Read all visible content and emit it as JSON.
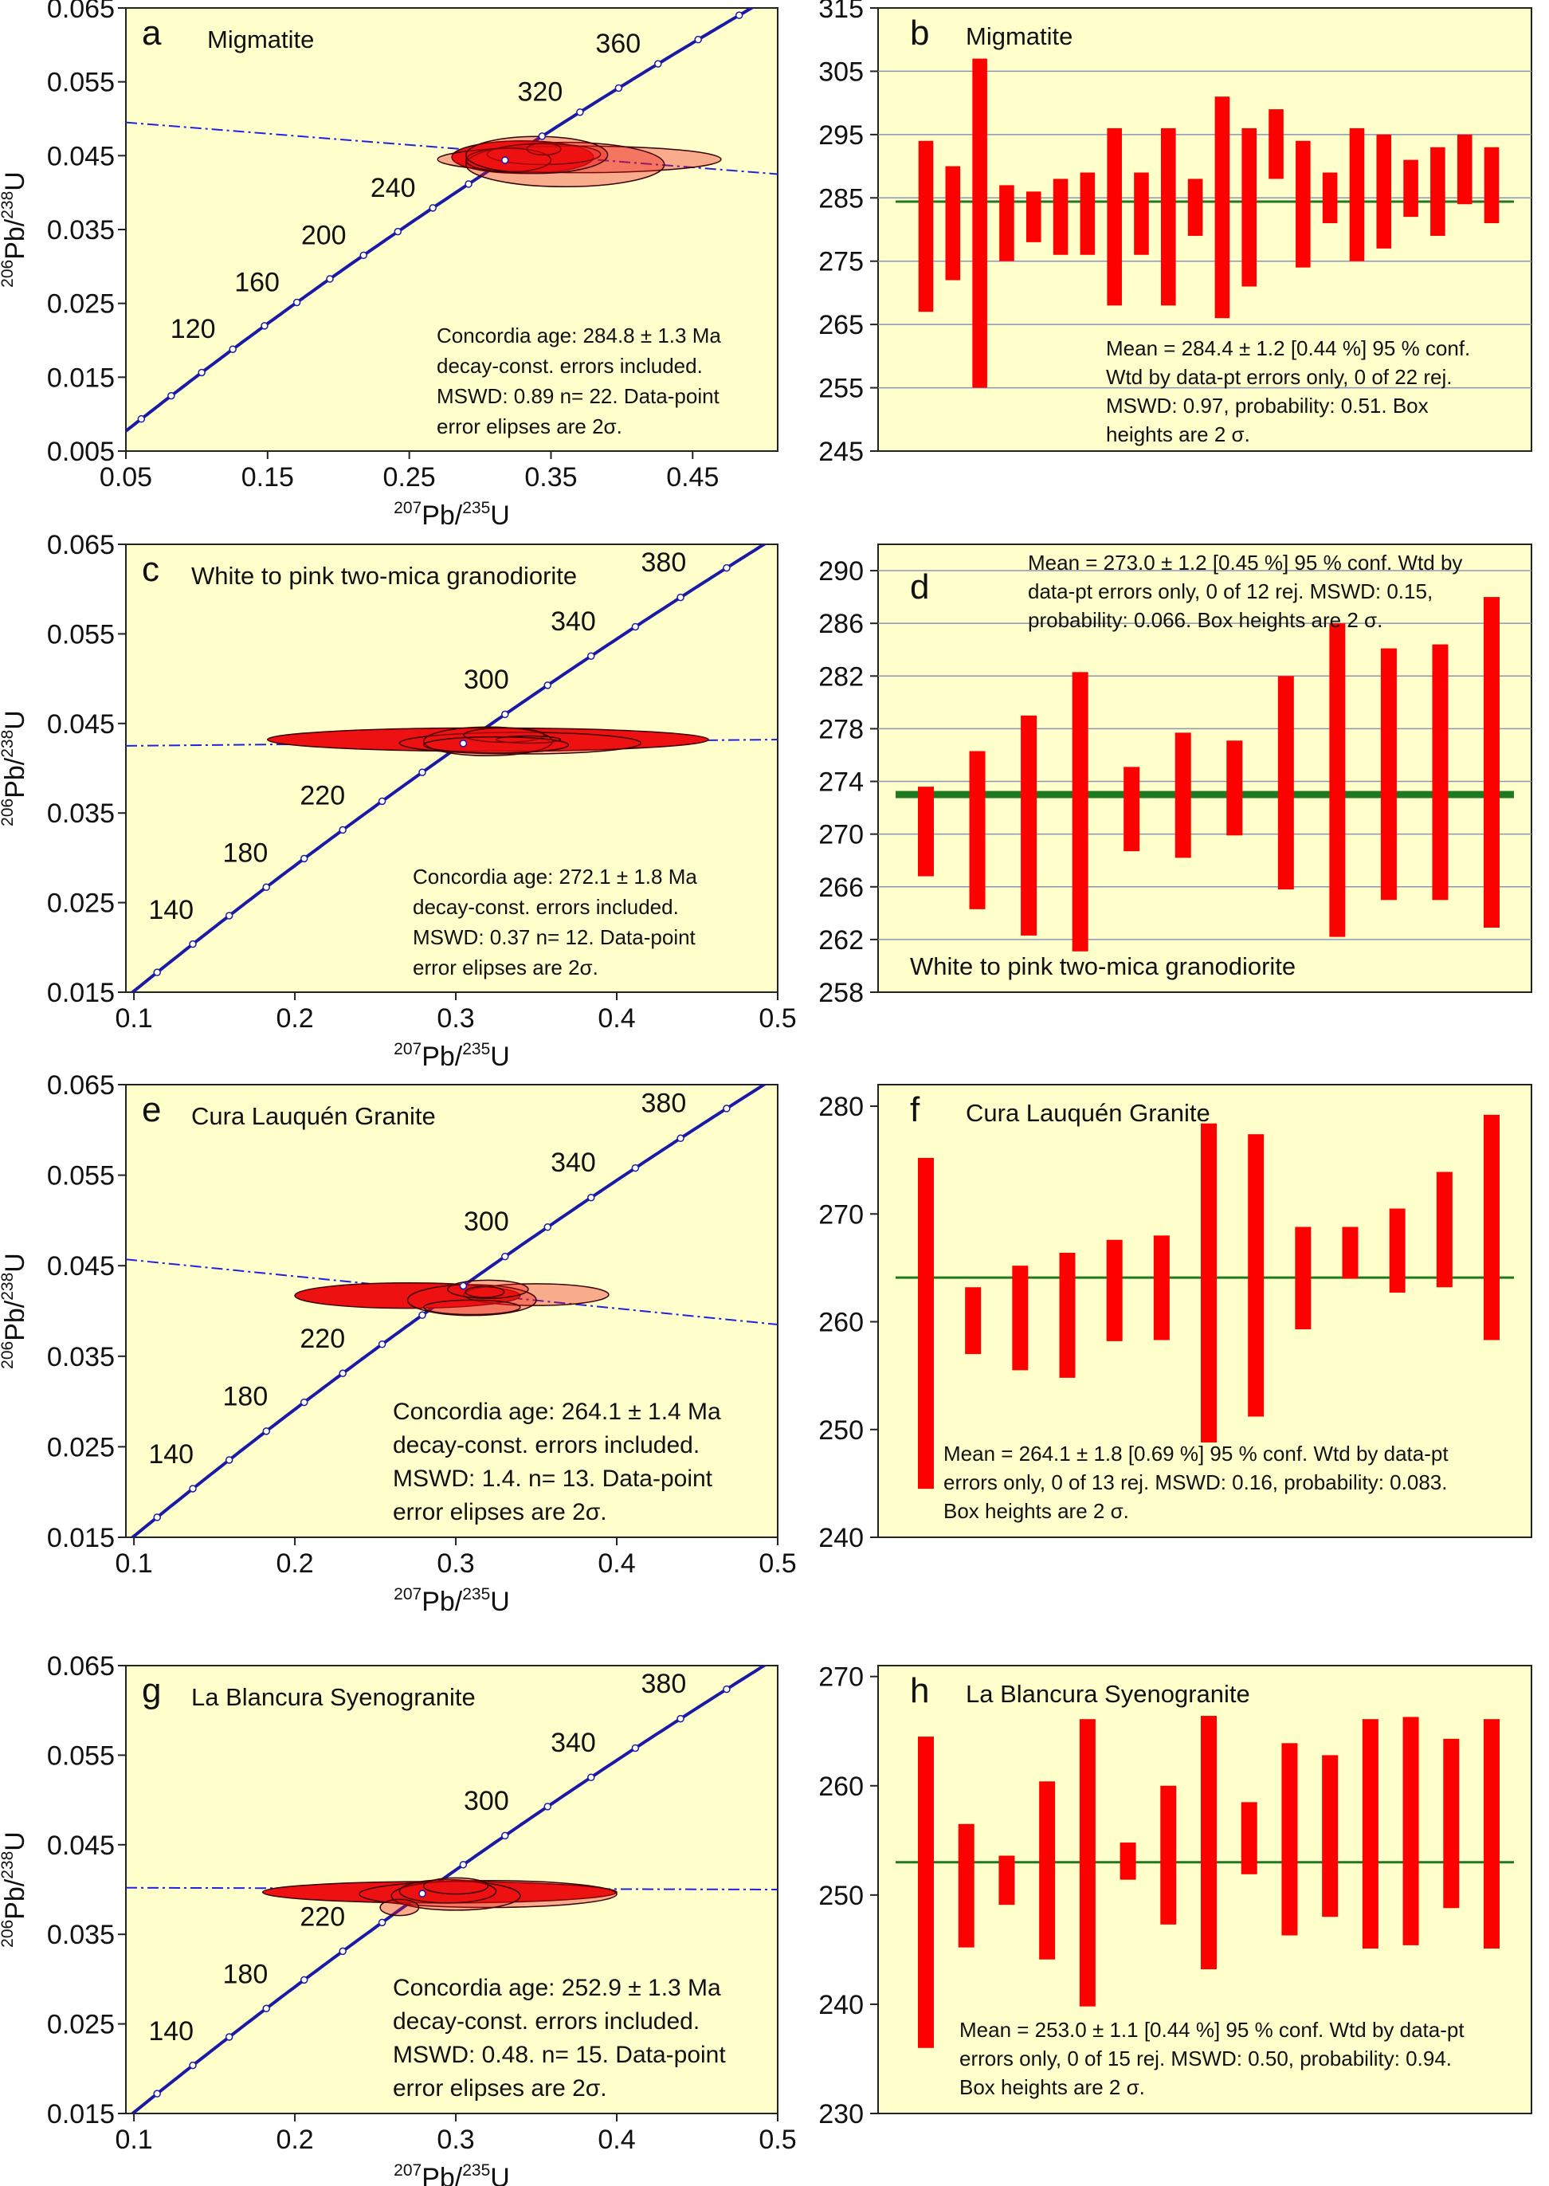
{
  "colors": {
    "panel_bg": "#ffffcc",
    "concordia": "#1a1aa6",
    "ellipse_fill": "#ee1111",
    "bar_fill": "#ff0000",
    "discordia": "#2222dd",
    "mean_line": "#1f7a1f",
    "grid": "#8a95b5"
  },
  "axis_labels": {
    "x_main": "Pb/",
    "x_sup1": "207",
    "x_sup2": "235",
    "x_end": "U",
    "y_main": "Pb/",
    "y_sup1": "206",
    "y_sup2": "238",
    "y_end": "U"
  },
  "chart_data": [
    {
      "id": "a",
      "letter": "a",
      "title": "Migmatite",
      "type": "scatter",
      "subtype": "concordia",
      "x_ticks": [
        "0.05",
        "0.15",
        "0.25",
        "0.35",
        "0.45"
      ],
      "x_tick_values": [
        0.05,
        0.15,
        0.25,
        0.35,
        0.45
      ],
      "xlim": [
        0.05,
        0.51
      ],
      "y_ticks": [
        "0.005",
        "0.015",
        "0.025",
        "0.035",
        "0.045",
        "0.055",
        "0.065"
      ],
      "y_tick_values": [
        0.005,
        0.015,
        0.025,
        0.035,
        0.045,
        0.055,
        0.065
      ],
      "ylim": [
        0.005,
        0.065
      ],
      "age_labels": [
        {
          "text": "120",
          "age": 120
        },
        {
          "text": "160",
          "age": 160
        },
        {
          "text": "200",
          "age": 200
        },
        {
          "text": "240",
          "age": 240
        },
        {
          "text": "320",
          "age": 320
        },
        {
          "text": "360",
          "age": 360
        }
      ],
      "concordia_age_range": [
        40,
        420
      ],
      "discordia": [
        [
          0.05,
          0.0495
        ],
        [
          0.51,
          0.0425
        ]
      ],
      "ellipses": [
        {
          "cx": 0.33,
          "cy": 0.0448,
          "rx": 0.05,
          "ry": 0.0022
        },
        {
          "cx": 0.37,
          "cy": 0.0445,
          "rx": 0.1,
          "ry": 0.0018
        },
        {
          "cx": 0.36,
          "cy": 0.0438,
          "rx": 0.07,
          "ry": 0.003
        },
        {
          "cx": 0.345,
          "cy": 0.0452,
          "rx": 0.04,
          "ry": 0.0014
        },
        {
          "cx": 0.32,
          "cy": 0.0444,
          "rx": 0.03,
          "ry": 0.0016
        },
        {
          "cx": 0.345,
          "cy": 0.0459,
          "rx": 0.012,
          "ry": 0.0008
        },
        {
          "cx": 0.34,
          "cy": 0.0451,
          "rx": 0.05,
          "ry": 0.0025
        }
      ],
      "annotation": [
        "Concordia age: 284.8 ± 1.3 Ma",
        "decay-const. errors included.",
        "MSWD: 0.89  n= 22. Data-point",
        "error elipses are 2σ."
      ]
    },
    {
      "id": "b",
      "letter": "b",
      "title": "Migmatite",
      "type": "bar",
      "subtype": "weighted-mean",
      "y_ticks": [
        "245",
        "255",
        "265",
        "275",
        "285",
        "295",
        "305",
        "315"
      ],
      "y_tick_values": [
        245,
        255,
        265,
        275,
        285,
        295,
        305,
        315
      ],
      "ylim": [
        245,
        315
      ],
      "mean": 284.4,
      "mean_line_width": 3,
      "grid": true,
      "bars": [
        [
          267,
          294
        ],
        [
          272,
          290
        ],
        [
          255,
          307
        ],
        [
          275,
          287
        ],
        [
          278,
          286
        ],
        [
          276,
          288
        ],
        [
          276,
          289
        ],
        [
          268,
          296
        ],
        [
          276,
          289
        ],
        [
          268,
          296
        ],
        [
          279,
          288
        ],
        [
          266,
          301
        ],
        [
          271,
          296
        ],
        [
          288,
          299
        ],
        [
          274,
          294
        ],
        [
          281,
          289
        ],
        [
          275,
          296
        ],
        [
          277,
          295
        ],
        [
          282,
          291
        ],
        [
          279,
          293
        ],
        [
          284,
          295
        ],
        [
          281,
          293
        ]
      ],
      "annotation": [
        "Mean = 284.4 ± 1.2  [0.44 %] 95 % conf.",
        "Wtd by data-pt errors only, 0 of 22 rej.",
        "MSWD: 0.97, probability: 0.51. Box",
        "heights are 2 σ."
      ]
    },
    {
      "id": "c",
      "letter": "c",
      "title": "White to pink two-mica granodiorite",
      "type": "scatter",
      "subtype": "concordia",
      "x_ticks": [
        "0.1",
        "0.2",
        "0.3",
        "0.4",
        "0.5"
      ],
      "x_tick_values": [
        0.1,
        0.2,
        0.3,
        0.4,
        0.5
      ],
      "xlim": [
        0.095,
        0.5
      ],
      "y_ticks": [
        "0.015",
        "0.025",
        "0.035",
        "0.045",
        "0.055",
        "0.065"
      ],
      "y_tick_values": [
        0.015,
        0.025,
        0.035,
        0.045,
        0.055,
        0.065
      ],
      "ylim": [
        0.015,
        0.065
      ],
      "age_labels": [
        {
          "text": "140",
          "age": 140
        },
        {
          "text": "180",
          "age": 180
        },
        {
          "text": "220",
          "age": 220
        },
        {
          "text": "300",
          "age": 300
        },
        {
          "text": "340",
          "age": 340
        },
        {
          "text": "380",
          "age": 380
        }
      ],
      "concordia_age_range": [
        90,
        410
      ],
      "discordia": [
        [
          0.095,
          0.0425
        ],
        [
          0.5,
          0.0432
        ]
      ],
      "ellipses": [
        {
          "cx": 0.32,
          "cy": 0.0432,
          "rx": 0.137,
          "ry": 0.0013
        },
        {
          "cx": 0.34,
          "cy": 0.0428,
          "rx": 0.075,
          "ry": 0.0012
        },
        {
          "cx": 0.32,
          "cy": 0.043,
          "rx": 0.04,
          "ry": 0.0016
        },
        {
          "cx": 0.33,
          "cy": 0.0437,
          "rx": 0.025,
          "ry": 0.0008
        },
        {
          "cx": 0.345,
          "cy": 0.0432,
          "rx": 0.02,
          "ry": 0.0004
        },
        {
          "cx": 0.325,
          "cy": 0.0426,
          "rx": 0.045,
          "ry": 0.0009
        }
      ],
      "annotation": [
        "Concordia age: 272.1 ± 1.8 Ma",
        "decay-const. errors included.",
        "MSWD: 0.37  n= 12. Data-point",
        "error elipses are 2σ."
      ]
    },
    {
      "id": "d",
      "letter": "d",
      "title": "White to pink two-mica granodiorite",
      "type": "bar",
      "subtype": "weighted-mean",
      "y_ticks": [
        "258",
        "262",
        "266",
        "270",
        "274",
        "278",
        "282",
        "286",
        "290"
      ],
      "y_tick_values": [
        258,
        262,
        266,
        270,
        274,
        278,
        282,
        286,
        290
      ],
      "ylim": [
        258,
        292
      ],
      "mean": 273.0,
      "mean_line_width": 9,
      "grid": true,
      "bars": [
        [
          266.8,
          273.6
        ],
        [
          264.3,
          276.3
        ],
        [
          262.3,
          279
        ],
        [
          261.1,
          282.3
        ],
        [
          268.7,
          275.1
        ],
        [
          268.2,
          277.7
        ],
        [
          269.9,
          277.1
        ],
        [
          265.8,
          282
        ],
        [
          262.2,
          286
        ],
        [
          265,
          284.1
        ],
        [
          265,
          284.4
        ],
        [
          262.9,
          288
        ]
      ],
      "title_position": "bottom",
      "annotation": [
        "Mean = 273.0 ± 1.2  [0.45 %] 95 % conf. Wtd by",
        "data-pt errors only, 0 of 12 rej. MSWD: 0.15,",
        "probability: 0.066. Box heights are 2 σ."
      ]
    },
    {
      "id": "e",
      "letter": "e",
      "title": "Cura Lauquén Granite",
      "type": "scatter",
      "subtype": "concordia",
      "x_ticks": [
        "0.1",
        "0.2",
        "0.3",
        "0.4",
        "0.5"
      ],
      "x_tick_values": [
        0.1,
        0.2,
        0.3,
        0.4,
        0.5
      ],
      "xlim": [
        0.095,
        0.5
      ],
      "y_ticks": [
        "0.015",
        "0.025",
        "0.035",
        "0.045",
        "0.055",
        "0.065"
      ],
      "y_tick_values": [
        0.015,
        0.025,
        0.035,
        0.045,
        0.055,
        0.065
      ],
      "ylim": [
        0.015,
        0.065
      ],
      "age_labels": [
        {
          "text": "140",
          "age": 140
        },
        {
          "text": "180",
          "age": 180
        },
        {
          "text": "220",
          "age": 220
        },
        {
          "text": "300",
          "age": 300
        },
        {
          "text": "340",
          "age": 340
        },
        {
          "text": "380",
          "age": 380
        }
      ],
      "concordia_age_range": [
        90,
        410
      ],
      "discordia": [
        [
          0.095,
          0.0457
        ],
        [
          0.5,
          0.0385
        ]
      ],
      "ellipses": [
        {
          "cx": 0.27,
          "cy": 0.0417,
          "rx": 0.07,
          "ry": 0.0014
        },
        {
          "cx": 0.35,
          "cy": 0.0418,
          "rx": 0.045,
          "ry": 0.0012
        },
        {
          "cx": 0.31,
          "cy": 0.0412,
          "rx": 0.04,
          "ry": 0.0017
        },
        {
          "cx": 0.32,
          "cy": 0.0424,
          "rx": 0.025,
          "ry": 0.001
        },
        {
          "cx": 0.31,
          "cy": 0.0404,
          "rx": 0.03,
          "ry": 0.0008
        },
        {
          "cx": 0.318,
          "cy": 0.0421,
          "rx": 0.012,
          "ry": 0.0006
        }
      ],
      "annotation": [
        "Concordia age: 264.1 ± 1.4 Ma",
        "decay-const. errors included.",
        "MSWD: 1.4.  n= 13. Data-point",
        "error elipses are 2σ."
      ]
    },
    {
      "id": "f",
      "letter": "f",
      "title": "Cura Lauquén Granite",
      "type": "bar",
      "subtype": "weighted-mean",
      "y_ticks": [
        "240",
        "250",
        "260",
        "270",
        "280"
      ],
      "y_tick_values": [
        240,
        250,
        260,
        270,
        280
      ],
      "ylim": [
        240,
        282
      ],
      "mean": 264.1,
      "mean_line_width": 3,
      "grid": false,
      "bars": [
        [
          244.5,
          275.2
        ],
        [
          257,
          263.2
        ],
        [
          255.5,
          265.2
        ],
        [
          254.8,
          266.4
        ],
        [
          258.2,
          267.6
        ],
        [
          258.3,
          268
        ],
        [
          248.8,
          278.4
        ],
        [
          251.2,
          277.4
        ],
        [
          259.3,
          268.8
        ],
        [
          264,
          268.8
        ],
        [
          262.7,
          270.5
        ],
        [
          263.2,
          273.9
        ],
        [
          258.3,
          279.2
        ]
      ],
      "annotation": [
        "Mean = 264.1 ± 1.8  [0.69 %] 95 % conf. Wtd by data-pt",
        "errors only, 0 of 13 rej. MSWD: 0.16, probability: 0.083.",
        "Box heights are 2 σ."
      ]
    },
    {
      "id": "g",
      "letter": "g",
      "title": "La Blancura Syenogranite",
      "type": "scatter",
      "subtype": "concordia",
      "x_ticks": [
        "0.1",
        "0.2",
        "0.3",
        "0.4",
        "0.5"
      ],
      "x_tick_values": [
        0.1,
        0.2,
        0.3,
        0.4,
        0.5
      ],
      "xlim": [
        0.095,
        0.5
      ],
      "y_ticks": [
        "0.015",
        "0.025",
        "0.035",
        "0.045",
        "0.055",
        "0.065"
      ],
      "y_tick_values": [
        0.015,
        0.025,
        0.035,
        0.045,
        0.055,
        0.065
      ],
      "ylim": [
        0.015,
        0.065
      ],
      "age_labels": [
        {
          "text": "140",
          "age": 140
        },
        {
          "text": "180",
          "age": 180
        },
        {
          "text": "220",
          "age": 220
        },
        {
          "text": "300",
          "age": 300
        },
        {
          "text": "340",
          "age": 340
        },
        {
          "text": "380",
          "age": 380
        }
      ],
      "concordia_age_range": [
        90,
        410
      ],
      "discordia": [
        [
          0.095,
          0.0402
        ],
        [
          0.5,
          0.04
        ]
      ],
      "ellipses": [
        {
          "cx": 0.29,
          "cy": 0.0397,
          "rx": 0.11,
          "ry": 0.0012
        },
        {
          "cx": 0.32,
          "cy": 0.0395,
          "rx": 0.08,
          "ry": 0.0015
        },
        {
          "cx": 0.3,
          "cy": 0.0393,
          "rx": 0.04,
          "ry": 0.0016
        },
        {
          "cx": 0.295,
          "cy": 0.0398,
          "rx": 0.03,
          "ry": 0.0013
        },
        {
          "cx": 0.265,
          "cy": 0.038,
          "rx": 0.012,
          "ry": 0.0009
        },
        {
          "cx": 0.3,
          "cy": 0.0404,
          "rx": 0.02,
          "ry": 0.0009
        }
      ],
      "annotation": [
        "Concordia age: 252.9 ± 1.3 Ma",
        "decay-const. errors included.",
        "MSWD: 0.48.  n= 15. Data-point",
        "error elipses are 2σ."
      ]
    },
    {
      "id": "h",
      "letter": "h",
      "title": "La Blancura Syenogranite",
      "type": "bar",
      "subtype": "weighted-mean",
      "y_ticks": [
        "230",
        "240",
        "250",
        "260",
        "270"
      ],
      "y_tick_values": [
        230,
        240,
        250,
        260,
        270
      ],
      "ylim": [
        230,
        271
      ],
      "mean": 253.0,
      "mean_line_width": 3,
      "grid": false,
      "bars": [
        [
          236,
          264.5
        ],
        [
          245.2,
          256.5
        ],
        [
          249.1,
          253.6
        ],
        [
          244.1,
          260.4
        ],
        [
          239.8,
          266.1
        ],
        [
          251.4,
          254.8
        ],
        [
          247.3,
          260
        ],
        [
          243.2,
          266.4
        ],
        [
          251.9,
          258.5
        ],
        [
          246.3,
          263.9
        ],
        [
          248,
          262.8
        ],
        [
          245.1,
          266.1
        ],
        [
          245.4,
          266.3
        ],
        [
          248.8,
          264.3
        ],
        [
          245.1,
          266.1
        ]
      ],
      "annotation": [
        "Mean = 253.0 ± 1.1  [0.44 %] 95 % conf. Wtd by data-pt",
        "errors only, 0 of 15 rej. MSWD: 0.50, probability: 0.94.",
        "Box heights are 2 σ."
      ]
    }
  ]
}
